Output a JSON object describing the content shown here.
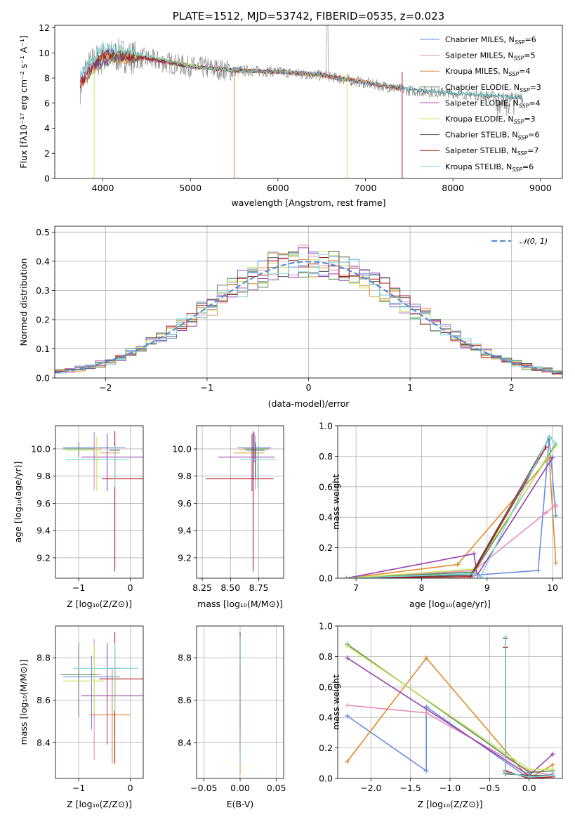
{
  "colors": [
    "#6a8ee0",
    "#e78fb8",
    "#e08a2f",
    "#5a8a5a",
    "#9a3fb0",
    "#c6e65a",
    "#555555",
    "#b01c1c",
    "#7ed6d6"
  ],
  "chart_data": [
    {
      "type": "line",
      "panel": "spectrum",
      "title": "PLATE=1512, MJD=53742, FIBERID=0535, z=0.023",
      "xlabel": "wavelength [Angstrom, rest frame]",
      "ylabel": "Flux [fλ10⁻¹⁷ erg cm⁻² s⁻¹ A⁻¹]",
      "xlim": [
        3450,
        9250
      ],
      "ylim": [
        0,
        12.2
      ],
      "xticks": [
        4000,
        5000,
        6000,
        7000,
        8000,
        9000
      ],
      "yticks": [
        0,
        2,
        4,
        6,
        8,
        10,
        12
      ],
      "legend_position": "top-right",
      "data_series": {
        "name": "",
        "color": "#808080",
        "x": [
          3740,
          3800,
          3900,
          4000,
          4200,
          4500,
          5000,
          5500,
          6000,
          6500,
          7000,
          7500,
          8000,
          8500,
          8800
        ],
        "y": [
          7.3,
          8.6,
          9.3,
          9.6,
          9.8,
          9.5,
          8.9,
          8.6,
          8.5,
          8.2,
          7.6,
          7.0,
          6.8,
          6.5,
          6.4
        ]
      },
      "model_series": [
        {
          "name": "Chabrier MILES",
          "nssp": "6",
          "x": [
            3740,
            4000,
            4500,
            5000,
            5500,
            6000,
            6500,
            7000,
            7400
          ],
          "y": [
            7.8,
            10.0,
            9.6,
            8.9,
            8.7,
            8.5,
            8.3,
            7.6,
            7.2
          ]
        },
        {
          "name": "Salpeter MILES",
          "nssp": "5",
          "x": [
            3740,
            4000,
            4500,
            5000,
            5500,
            6000,
            6500,
            7000,
            7400
          ],
          "y": [
            7.6,
            9.8,
            9.5,
            8.9,
            8.6,
            8.5,
            8.3,
            7.6,
            7.2
          ]
        },
        {
          "name": "Kroupa MILES",
          "nssp": "4",
          "x": [
            3740,
            4000,
            4500,
            5000,
            5500,
            6000,
            6500,
            7000,
            7400
          ],
          "y": [
            7.5,
            9.6,
            9.5,
            8.9,
            8.6,
            8.5,
            8.2,
            7.7,
            7.1
          ]
        },
        {
          "name": "Chabrier ELODIE",
          "nssp": "3",
          "x": [
            3900,
            4200,
            4500,
            5000,
            5500,
            6000,
            6500,
            6800
          ],
          "y": [
            9.0,
            9.7,
            9.6,
            9.0,
            8.6,
            8.5,
            8.2,
            7.8
          ]
        },
        {
          "name": "Salpeter ELODIE",
          "nssp": "4",
          "x": [
            3900,
            4200,
            4500,
            5000,
            5500,
            6000,
            6500,
            6800
          ],
          "y": [
            9.1,
            9.8,
            9.5,
            9.0,
            8.6,
            8.5,
            8.2,
            7.8
          ]
        },
        {
          "name": "Kroupa ELODIE",
          "nssp": "3",
          "x": [
            3900,
            4200,
            4500,
            5000,
            5500,
            6000,
            6500,
            6800
          ],
          "y": [
            9.4,
            10.0,
            9.7,
            9.0,
            8.6,
            8.5,
            8.2,
            7.8
          ]
        },
        {
          "name": "Chabrier STELIB",
          "nssp": "6",
          "x": [
            3740,
            4000,
            4500,
            5000,
            5500,
            6000,
            6500,
            7000,
            7500,
            8000,
            8500,
            8800
          ],
          "y": [
            7.5,
            9.9,
            9.6,
            8.9,
            8.6,
            8.5,
            8.3,
            7.6,
            7.1,
            6.8,
            6.6,
            6.4
          ]
        },
        {
          "name": "Salpeter STELIB",
          "nssp": "7",
          "x": [
            3740,
            4000,
            4500,
            5000,
            5500,
            6000,
            6500,
            7000,
            7400
          ],
          "y": [
            7.6,
            9.9,
            9.6,
            8.9,
            8.6,
            8.5,
            8.3,
            7.6,
            7.1
          ]
        },
        {
          "name": "Kroupa STELIB",
          "nssp": "6",
          "x": [
            3740,
            4000,
            4500,
            5000,
            5500,
            6000,
            6500,
            7000,
            7500,
            8000,
            8500,
            8800
          ],
          "y": [
            8.2,
            10.5,
            9.8,
            8.9,
            8.6,
            8.5,
            8.3,
            7.6,
            7.1,
            6.8,
            6.6,
            6.4
          ]
        }
      ]
    },
    {
      "type": "line",
      "panel": "residuals",
      "xlabel": "(data-model)/error",
      "ylabel": "Normed distribution",
      "xlim": [
        -2.5,
        2.5
      ],
      "ylim": [
        0,
        0.52
      ],
      "xticks": [
        -2,
        -1,
        0,
        1,
        2
      ],
      "yticks": [
        0,
        0.1,
        0.2,
        0.3,
        0.4,
        0.5
      ],
      "legend_position": "top-right",
      "reference_curve": {
        "name": "𝒩(0, 1)",
        "color": "#5b8cd6"
      }
    },
    {
      "type": "scatter",
      "panel": "metallicity-age",
      "xlabel": "Z [log₁₀(Z/Z⊙)]",
      "ylabel": "age  [log₁₀(age/yr)]",
      "xlim": [
        -1.45,
        0.25
      ],
      "ylim": [
        9.05,
        10.17
      ],
      "xticks": [
        -1,
        0
      ],
      "yticks": [
        9.2,
        9.4,
        9.6,
        9.8,
        10.0
      ],
      "points": [
        {
          "x": -0.7,
          "xerr": [
            0.6,
            0.6
          ],
          "y": 10.01,
          "yerr": [
            0.11,
            0.11
          ]
        },
        {
          "x": -0.7,
          "xerr": [
            0.15,
            0.15
          ],
          "y": 10.0,
          "yerr": [
            0.3,
            0.1
          ]
        },
        {
          "x": -0.3,
          "xerr": [
            0.3,
            0.1
          ],
          "y": 9.97,
          "yerr": [
            0.17,
            0.13
          ]
        },
        {
          "x": -1.0,
          "xerr": [
            0.3,
            0.3
          ],
          "y": 10.0,
          "yerr": [
            0.06,
            0.05
          ]
        },
        {
          "x": -0.45,
          "xerr": [
            0.5,
            0.7
          ],
          "y": 9.94,
          "yerr": [
            0.25,
            0.17
          ]
        },
        {
          "x": -0.65,
          "xerr": [
            0.6,
            0.1
          ],
          "y": 9.99,
          "yerr": [
            0.3,
            0.1
          ]
        },
        {
          "x": -0.3,
          "xerr": [
            0.1,
            0.1
          ],
          "y": 9.99,
          "yerr": [
            0.2,
            0.05
          ]
        },
        {
          "x": -0.3,
          "xerr": [
            0.25,
            0.55
          ],
          "y": 9.78,
          "yerr": [
            0.68,
            0.35
          ]
        },
        {
          "x": -0.3,
          "xerr": [
            0.95,
            0.3
          ],
          "y": 9.92,
          "yerr": [
            0.2,
            0.1
          ]
        }
      ]
    },
    {
      "type": "scatter",
      "panel": "mass-age",
      "xlabel": "mass [log₁₀(M/M⊙)]",
      "xlim": [
        8.2,
        8.97
      ],
      "ylim": [
        9.05,
        10.17
      ],
      "xticks": [
        8.25,
        8.5,
        8.75
      ],
      "yticks": [
        9.2,
        9.4,
        9.6,
        9.8,
        10.0
      ],
      "points": [
        {
          "x": 8.71,
          "xerr": [
            0.15,
            0.15
          ],
          "y": 10.01,
          "yerr": [
            0.11,
            0.11
          ]
        },
        {
          "x": 8.72,
          "xerr": [
            0.15,
            0.15
          ],
          "y": 10.0,
          "yerr": [
            0.3,
            0.1
          ]
        },
        {
          "x": 8.7,
          "xerr": [
            0.17,
            0.1
          ],
          "y": 9.97,
          "yerr": [
            0.17,
            0.13
          ]
        },
        {
          "x": 8.72,
          "xerr": [
            0.1,
            0.12
          ],
          "y": 10.0,
          "yerr": [
            0.06,
            0.05
          ]
        },
        {
          "x": 8.69,
          "xerr": [
            0.3,
            0.2
          ],
          "y": 9.94,
          "yerr": [
            0.25,
            0.17
          ]
        },
        {
          "x": 8.7,
          "xerr": [
            0.12,
            0.12
          ],
          "y": 9.99,
          "yerr": [
            0.3,
            0.1
          ]
        },
        {
          "x": 8.72,
          "xerr": [
            0.08,
            0.08
          ],
          "y": 9.99,
          "yerr": [
            0.2,
            0.05
          ]
        },
        {
          "x": 8.7,
          "xerr": [
            0.42,
            0.18
          ],
          "y": 9.78,
          "yerr": [
            0.68,
            0.35
          ]
        },
        {
          "x": 8.74,
          "xerr": [
            0.15,
            0.16
          ],
          "y": 9.92,
          "yerr": [
            0.2,
            0.1
          ]
        }
      ]
    },
    {
      "type": "line",
      "panel": "age-massweight",
      "xlabel": "age  [log₁₀(age/yr)]",
      "ylabel": "mass weight",
      "xlim": [
        6.72,
        10.15
      ],
      "ylim": [
        0,
        1.0
      ],
      "xticks": [
        7,
        8,
        9,
        10
      ],
      "yticks": [
        0,
        0.2,
        0.4,
        0.6,
        0.8,
        1.0
      ],
      "series": [
        {
          "x": [
            6.85,
            8.8,
            9.78,
            9.95,
            10.05
          ],
          "y": [
            0.0,
            0.02,
            0.05,
            0.92,
            0.41
          ]
        },
        {
          "x": [
            6.85,
            8.8,
            9.9,
            10.05,
            10.05
          ],
          "y": [
            0.0,
            0.05,
            0.43,
            0.48,
            0.47
          ]
        },
        {
          "x": [
            6.85,
            8.55,
            9.95,
            10.05
          ],
          "y": [
            0.0,
            0.09,
            0.79,
            0.1
          ]
        },
        {
          "x": [
            6.85,
            8.8,
            10.05
          ],
          "y": [
            0.0,
            0.04,
            0.88
          ]
        },
        {
          "x": [
            6.85,
            8.8,
            8.85,
            10.0
          ],
          "y": [
            0.0,
            0.16,
            0.02,
            0.79
          ]
        },
        {
          "x": [
            6.85,
            8.8,
            10.05
          ],
          "y": [
            0.0,
            0.06,
            0.87
          ]
        },
        {
          "x": [
            6.85,
            8.75,
            9.95
          ],
          "y": [
            0.0,
            0.02,
            0.92
          ]
        },
        {
          "x": [
            6.85,
            8.75,
            9.9
          ],
          "y": [
            0.0,
            0.01,
            0.86
          ]
        },
        {
          "x": [
            6.85,
            8.8,
            8.9,
            9.95,
            10.05
          ],
          "y": [
            0.0,
            0.03,
            0.01,
            0.93,
            0.88
          ]
        }
      ]
    },
    {
      "type": "scatter",
      "panel": "metallicity-mass",
      "xlabel": "Z [log₁₀(Z/Z⊙)]",
      "ylabel": "mass [log₁₀(M/M⊙)]",
      "xlim": [
        -1.45,
        0.25
      ],
      "ylim": [
        8.23,
        8.95
      ],
      "xticks": [
        -1,
        0
      ],
      "yticks": [
        8.4,
        8.6,
        8.8
      ],
      "points": [
        {
          "x": -0.75,
          "xerr": [
            0.55,
            0.55
          ],
          "y": 8.71,
          "yerr": [
            0.25,
            0.1
          ]
        },
        {
          "x": -0.7,
          "xerr": [
            0.15,
            0.15
          ],
          "y": 8.72,
          "yerr": [
            0.4,
            0.17
          ]
        },
        {
          "x": -0.35,
          "xerr": [
            0.45,
            0.35
          ],
          "y": 8.53,
          "yerr": [
            0.23,
            0.22
          ]
        },
        {
          "x": -1.0,
          "xerr": [
            0.35,
            0.35
          ],
          "y": 8.72,
          "yerr": [
            0.2,
            0.15
          ]
        },
        {
          "x": -0.45,
          "xerr": [
            0.5,
            0.7
          ],
          "y": 8.62,
          "yerr": [
            0.23,
            0.25
          ]
        },
        {
          "x": -0.7,
          "xerr": [
            0.6,
            0.2
          ],
          "y": 8.69,
          "yerr": [
            0.15,
            0.17
          ]
        },
        {
          "x": -0.3,
          "xerr": [
            0.1,
            0.1
          ],
          "y": 8.75,
          "yerr": [
            0.15,
            0.1
          ]
        },
        {
          "x": -0.3,
          "xerr": [
            0.3,
            0.55
          ],
          "y": 8.7,
          "yerr": [
            0.4,
            0.22
          ]
        },
        {
          "x": -0.3,
          "xerr": [
            0.8,
            0.45
          ],
          "y": 8.75,
          "yerr": [
            0.2,
            0.12
          ]
        }
      ]
    },
    {
      "type": "scatter",
      "panel": "extinction-mass",
      "xlabel": "E(B-V)",
      "xlim": [
        -0.06,
        0.06
      ],
      "ylim": [
        8.23,
        8.95
      ],
      "xticks": [
        -0.05,
        0.0,
        0.05
      ],
      "yticks": [
        8.4,
        8.6,
        8.8
      ],
      "points": [
        {
          "x": 0.0,
          "y": 8.71,
          "yerr": [
            0.4,
            0.2
          ]
        },
        {
          "x": 0.0,
          "y": 8.72,
          "yerr": [
            0.35,
            0.18
          ]
        },
        {
          "x": 0.0,
          "y": 8.53,
          "yerr": [
            0.28,
            0.22
          ]
        },
        {
          "x": 0.0,
          "y": 8.72,
          "yerr": [
            0.3,
            0.17
          ]
        },
        {
          "x": 0.0,
          "y": 8.62,
          "yerr": [
            0.25,
            0.27
          ]
        },
        {
          "x": 0.0,
          "y": 8.69,
          "yerr": [
            0.3,
            0.2
          ]
        },
        {
          "x": 0.0,
          "y": 8.75,
          "yerr": [
            0.3,
            0.15
          ]
        },
        {
          "x": 0.0,
          "y": 8.7,
          "yerr": [
            0.4,
            0.22
          ]
        },
        {
          "x": 0.0,
          "y": 8.75,
          "yerr": [
            0.45,
            0.15
          ]
        }
      ]
    },
    {
      "type": "line",
      "panel": "metallicity-massweight",
      "xlabel": "Z [log₁₀(Z/Z⊙)]",
      "ylabel": "mass weight",
      "xlim": [
        -2.42,
        0.42
      ],
      "ylim": [
        0,
        1.0
      ],
      "xticks": [
        -2.0,
        -1.5,
        -1.0,
        -0.5,
        0.0
      ],
      "yticks": [
        0,
        0.2,
        0.4,
        0.6,
        0.8,
        1.0
      ],
      "series": [
        {
          "x": [
            -2.3,
            -1.3,
            -1.3,
            0.0,
            0.3
          ],
          "y": [
            0.41,
            0.05,
            0.47,
            0.0,
            0.03
          ]
        },
        {
          "x": [
            -2.3,
            -1.3,
            0.0,
            0.3
          ],
          "y": [
            0.48,
            0.43,
            0.05,
            0.02
          ]
        },
        {
          "x": [
            -2.3,
            -1.3,
            0.0,
            0.3
          ],
          "y": [
            0.11,
            0.79,
            0.0,
            0.09
          ]
        },
        {
          "x": [
            -2.3,
            0.0,
            0.3
          ],
          "y": [
            0.88,
            0.04,
            0.05
          ]
        },
        {
          "x": [
            -2.3,
            0.0,
            0.3
          ],
          "y": [
            0.79,
            0.02,
            0.16
          ]
        },
        {
          "x": [
            -2.3,
            0.0,
            0.3
          ],
          "y": [
            0.87,
            0.06,
            0.06
          ]
        },
        {
          "x": [
            -0.3,
            -0.3,
            0.0,
            0.3
          ],
          "y": [
            0.92,
            0.03,
            0.02,
            0.02
          ]
        },
        {
          "x": [
            -0.3,
            -0.3,
            0.0,
            0.3
          ],
          "y": [
            0.86,
            0.05,
            0.0,
            0.01
          ]
        },
        {
          "x": [
            -0.3,
            -0.3,
            0.0,
            0.3
          ],
          "y": [
            0.93,
            0.04,
            0.01,
            0.02
          ]
        }
      ]
    }
  ]
}
